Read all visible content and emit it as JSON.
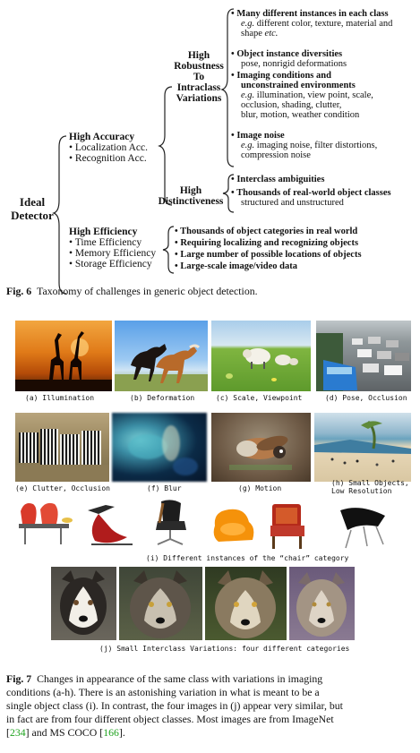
{
  "fig6": {
    "root": "Ideal\nDetector",
    "root_l1": "Ideal",
    "root_l2": "Detector",
    "accuracy": {
      "title": "High Accuracy",
      "items": [
        "Localization Acc.",
        "Recognition Acc."
      ]
    },
    "robustness": {
      "l1": "High",
      "l2": "Robustness",
      "l3": "To",
      "l4": "Intraclass",
      "l5": "Variations"
    },
    "distinct": {
      "l1": "High",
      "l2": "Distinctiveness"
    },
    "efficiency": {
      "title": "High Efficiency",
      "items": [
        "Time Efficiency",
        "Memory Efficiency",
        "Storage Efficiency"
      ]
    },
    "robust_items": [
      {
        "head": "Many different instances in each class",
        "lines": [
          "different color, texture, material and",
          "shape etc."
        ],
        "eg": "e.g."
      },
      {
        "head": "Object instance diversities",
        "lines": [
          "pose, nonrigid deformations"
        ]
      },
      {
        "head": "Imaging conditions and",
        "head2": "unconstrained environments",
        "eg": "e.g.",
        "lines": [
          "illumination, view point, scale,",
          "occlusion, shading, clutter,",
          "blur, motion, weather condition"
        ]
      },
      {
        "head": "Image noise",
        "eg": "e.g.",
        "lines": [
          "imaging noise, filter distortions,",
          "compression noise"
        ]
      }
    ],
    "distinct_items": [
      {
        "head": "Interclass ambiguities"
      },
      {
        "head": "Thousands of real-world object classes",
        "lines": [
          "structured and unstructured"
        ]
      }
    ],
    "efficiency_items": [
      "Thousands of object categories in real world",
      "Requiring localizing and recognizing objects",
      "Large number of possible locations of objects",
      "Large-scale image/video data"
    ],
    "caption_label": "Fig. 6",
    "caption_text": "Taxonomy of challenges in generic object detection."
  },
  "fig7": {
    "panels": [
      {
        "id": "a",
        "label": "(a) Illumination"
      },
      {
        "id": "b",
        "label": "(b) Deformation"
      },
      {
        "id": "c",
        "label": "(c) Scale, Viewpoint"
      },
      {
        "id": "d",
        "label": "(d) Pose, Occlusion"
      },
      {
        "id": "e",
        "label": "(e) Clutter, Occlusion"
      },
      {
        "id": "f",
        "label": "(f) Blur"
      },
      {
        "id": "g",
        "label": "(g) Motion"
      },
      {
        "id": "h",
        "label": "(h) Small Objects,",
        "label2": "Low Resolution"
      },
      {
        "id": "i",
        "label": "(i) Different instances of the “chair” category"
      },
      {
        "id": "j",
        "label": "(j) Small Interclass Variations: four different categories"
      }
    ],
    "caption_label": "Fig. 7",
    "caption_lines": [
      "Changes in appearance of the same class with variations in imaging",
      "conditions (a-h). There is an astonishing variation in what is meant to be a",
      "single object class (i). In contrast, the four images in (j) appear very similar, but",
      "in fact are from four different object classes. Most images are from ImageNet"
    ],
    "ref1": "234",
    "ref_mid": "and MS COCO",
    "ref2": "166",
    "ref_open": "[",
    "ref_close": "]",
    "ref_end": "]."
  }
}
